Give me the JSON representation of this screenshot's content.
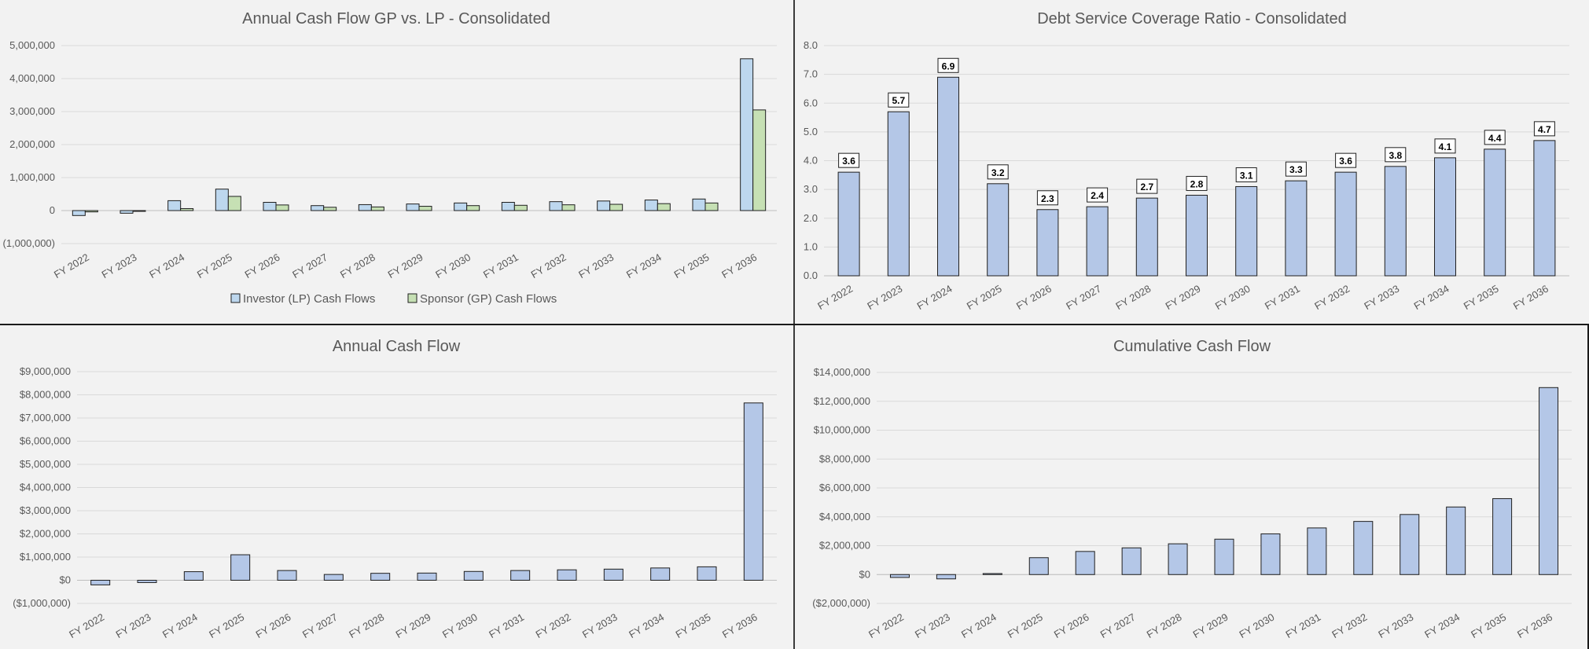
{
  "charts": [
    {
      "id": "lpgp",
      "type": "bar",
      "title": "Annual Cash Flow GP vs. LP - Consolidated",
      "categories": [
        "FY 2022",
        "FY 2023",
        "FY 2024",
        "FY 2025",
        "FY 2026",
        "FY 2027",
        "FY 2028",
        "FY 2029",
        "FY 2030",
        "FY 2031",
        "FY 2032",
        "FY 2033",
        "FY 2034",
        "FY 2035",
        "FY 2036"
      ],
      "series": [
        {
          "name": "Investor (LP) Cash Flows",
          "color": "#bdd7ee",
          "values": [
            -150000,
            -80000,
            300000,
            650000,
            250000,
            150000,
            180000,
            200000,
            230000,
            250000,
            270000,
            290000,
            320000,
            350000,
            4600000
          ]
        },
        {
          "name": "Sponsor (GP) Cash Flows",
          "color": "#c6e0b4",
          "values": [
            -40000,
            -20000,
            60000,
            430000,
            170000,
            100000,
            110000,
            130000,
            150000,
            160000,
            175000,
            190000,
            210000,
            230000,
            3050000
          ]
        }
      ],
      "ylim": [
        -1000000,
        5000000
      ],
      "yticks": [
        -1000000,
        0,
        1000000,
        2000000,
        3000000,
        4000000,
        5000000
      ],
      "ytick_labels": [
        "(1,000,000)",
        "0",
        "1,000,000",
        "2,000,000",
        "3,000,000",
        "4,000,000",
        "5,000,000"
      ],
      "legend": "bottom"
    },
    {
      "id": "dscr",
      "type": "bar",
      "title": "Debt Service Coverage Ratio - Consolidated",
      "categories": [
        "FY 2022",
        "FY 2023",
        "FY 2024",
        "FY 2025",
        "FY 2026",
        "FY 2027",
        "FY 2028",
        "FY 2029",
        "FY 2030",
        "FY 2031",
        "FY 2032",
        "FY 2033",
        "FY 2034",
        "FY 2035",
        "FY 2036"
      ],
      "series": [
        {
          "name": "",
          "color": "#b4c7e7",
          "values": [
            3.6,
            5.7,
            6.9,
            3.2,
            2.3,
            2.4,
            2.7,
            2.8,
            3.1,
            3.3,
            3.6,
            3.8,
            4.1,
            4.4,
            4.7
          ]
        }
      ],
      "data_labels": [
        "3.6",
        "5.7",
        "6.9",
        "3.2",
        "2.3",
        "2.4",
        "2.7",
        "2.8",
        "3.1",
        "3.3",
        "3.6",
        "3.8",
        "4.1",
        "4.4",
        "4.7"
      ],
      "ylim": [
        0,
        8
      ],
      "yticks": [
        0,
        1,
        2,
        3,
        4,
        5,
        6,
        7,
        8
      ],
      "ytick_labels": [
        "0.0",
        "1.0",
        "2.0",
        "3.0",
        "4.0",
        "5.0",
        "6.0",
        "7.0",
        "8.0"
      ]
    },
    {
      "id": "annual",
      "type": "bar",
      "title": "Annual Cash Flow",
      "categories": [
        "FY 2022",
        "FY 2023",
        "FY 2024",
        "FY 2025",
        "FY 2026",
        "FY 2027",
        "FY 2028",
        "FY 2029",
        "FY 2030",
        "FY 2031",
        "FY 2032",
        "FY 2033",
        "FY 2034",
        "FY 2035",
        "FY 2036"
      ],
      "series": [
        {
          "name": "",
          "color": "#b4c7e7",
          "values": [
            -200000,
            -100000,
            370000,
            1100000,
            420000,
            250000,
            300000,
            310000,
            380000,
            420000,
            450000,
            480000,
            530000,
            580000,
            7650000
          ]
        }
      ],
      "ylim": [
        -1000000,
        9000000
      ],
      "yticks": [
        -1000000,
        0,
        1000000,
        2000000,
        3000000,
        4000000,
        5000000,
        6000000,
        7000000,
        8000000,
        9000000
      ],
      "ytick_labels": [
        "($1,000,000)",
        "$0",
        "$1,000,000",
        "$2,000,000",
        "$3,000,000",
        "$4,000,000",
        "$5,000,000",
        "$6,000,000",
        "$7,000,000",
        "$8,000,000",
        "$9,000,000"
      ]
    },
    {
      "id": "cumul",
      "type": "bar",
      "title": "Cumulative Cash Flow",
      "categories": [
        "FY 2022",
        "FY 2023",
        "FY 2024",
        "FY 2025",
        "FY 2026",
        "FY 2027",
        "FY 2028",
        "FY 2029",
        "FY 2030",
        "FY 2031",
        "FY 2032",
        "FY 2033",
        "FY 2034",
        "FY 2035",
        "FY 2036"
      ],
      "series": [
        {
          "name": "",
          "color": "#b4c7e7",
          "values": [
            -200000,
            -300000,
            70000,
            1170000,
            1600000,
            1850000,
            2130000,
            2450000,
            2820000,
            3230000,
            3680000,
            4160000,
            4680000,
            5260000,
            12950000
          ]
        }
      ],
      "ylim": [
        -2000000,
        14000000
      ],
      "yticks": [
        -2000000,
        0,
        2000000,
        4000000,
        6000000,
        8000000,
        10000000,
        12000000,
        14000000
      ],
      "ytick_labels": [
        "($2,000,000)",
        "$0",
        "$2,000,000",
        "$4,000,000",
        "$6,000,000",
        "$8,000,000",
        "$10,000,000",
        "$12,000,000",
        "$14,000,000"
      ]
    }
  ]
}
